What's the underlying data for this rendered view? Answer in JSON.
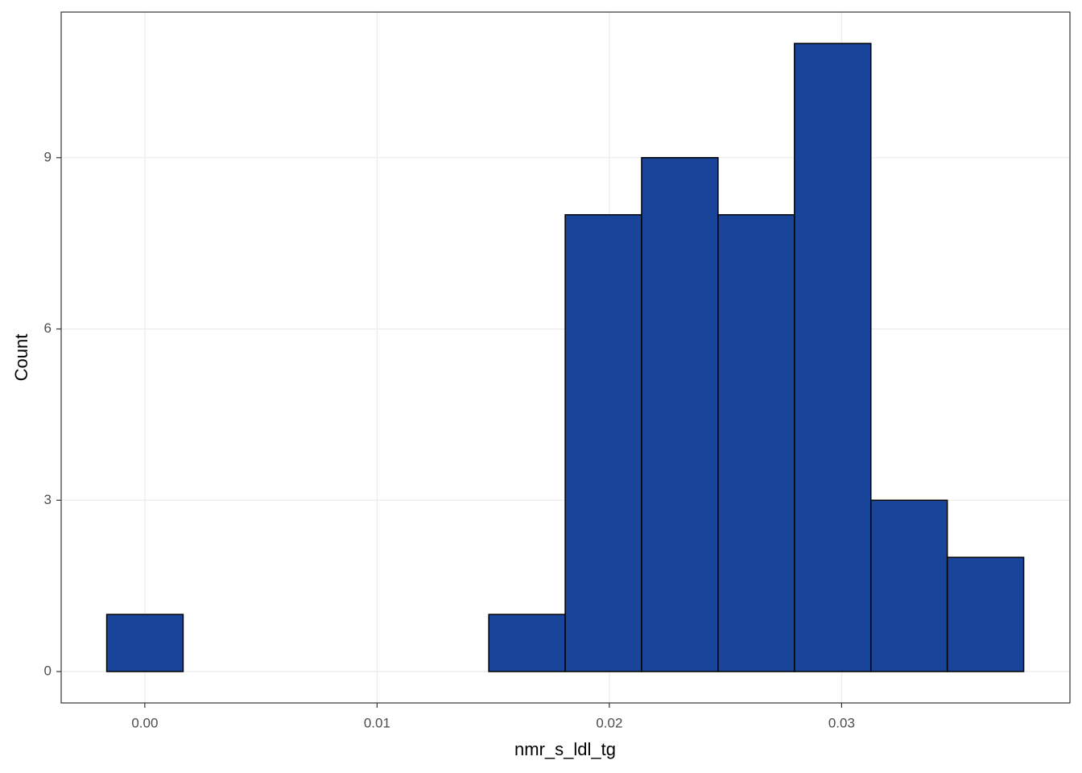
{
  "chart_data": {
    "type": "histogram",
    "x_label": "nmr_s_ldl_tg",
    "y_label": "Count",
    "bins": [
      -0.00164,
      0.00165,
      0.00494,
      0.00823,
      0.01152,
      0.01481,
      0.0181,
      0.02139,
      0.02468,
      0.02797,
      0.03126,
      0.03455,
      0.03784
    ],
    "counts": [
      1,
      0,
      0,
      0,
      0,
      1,
      8,
      9,
      8,
      11,
      3,
      2
    ],
    "color": "#18449a",
    "edge_color": "#000000",
    "xlim": [
      -0.0036,
      0.03983
    ],
    "ylim": [
      -0.55,
      11.55
    ],
    "xticks": [
      {
        "value": 0,
        "label": "0.00"
      },
      0.01,
      0.02,
      0.03
    ],
    "yticks": [
      0,
      3,
      6,
      9
    ],
    "grid": true
  }
}
